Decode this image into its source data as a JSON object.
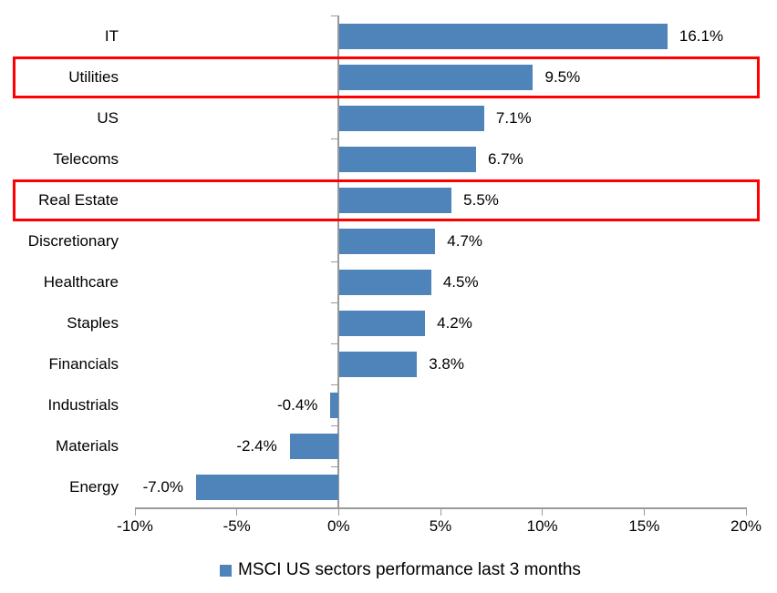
{
  "chart_data": {
    "type": "bar",
    "orientation": "horizontal",
    "categories": [
      "IT",
      "Utilities",
      "US",
      "Telecoms",
      "Real Estate",
      "Discretionary",
      "Healthcare",
      "Staples",
      "Financials",
      "Industrials",
      "Materials",
      "Energy"
    ],
    "values": [
      16.1,
      9.5,
      7.1,
      6.7,
      5.5,
      4.7,
      4.5,
      4.2,
      3.8,
      -0.4,
      -2.4,
      -7.0
    ],
    "value_labels": [
      "16.1%",
      "9.5%",
      "7.1%",
      "6.7%",
      "5.5%",
      "4.7%",
      "4.5%",
      "4.2%",
      "3.8%",
      "-0.4%",
      "-2.4%",
      "-7.0%"
    ],
    "highlighted_categories": [
      "Utilities",
      "Real Estate"
    ],
    "xlim": [
      -10,
      20
    ],
    "x_ticks": [
      -10,
      -5,
      0,
      5,
      10,
      15,
      20
    ],
    "x_tick_labels": [
      "-10%",
      "-5%",
      "0%",
      "5%",
      "10%",
      "15%",
      "20%"
    ],
    "grid": false,
    "legend": {
      "label": "MSCI US sectors performance last 3 months",
      "position": "bottom"
    },
    "colors": {
      "bar": "#4e84ba",
      "highlight_box": "#ff0000",
      "axis": "#9a9a9a",
      "text": "#000000"
    }
  }
}
